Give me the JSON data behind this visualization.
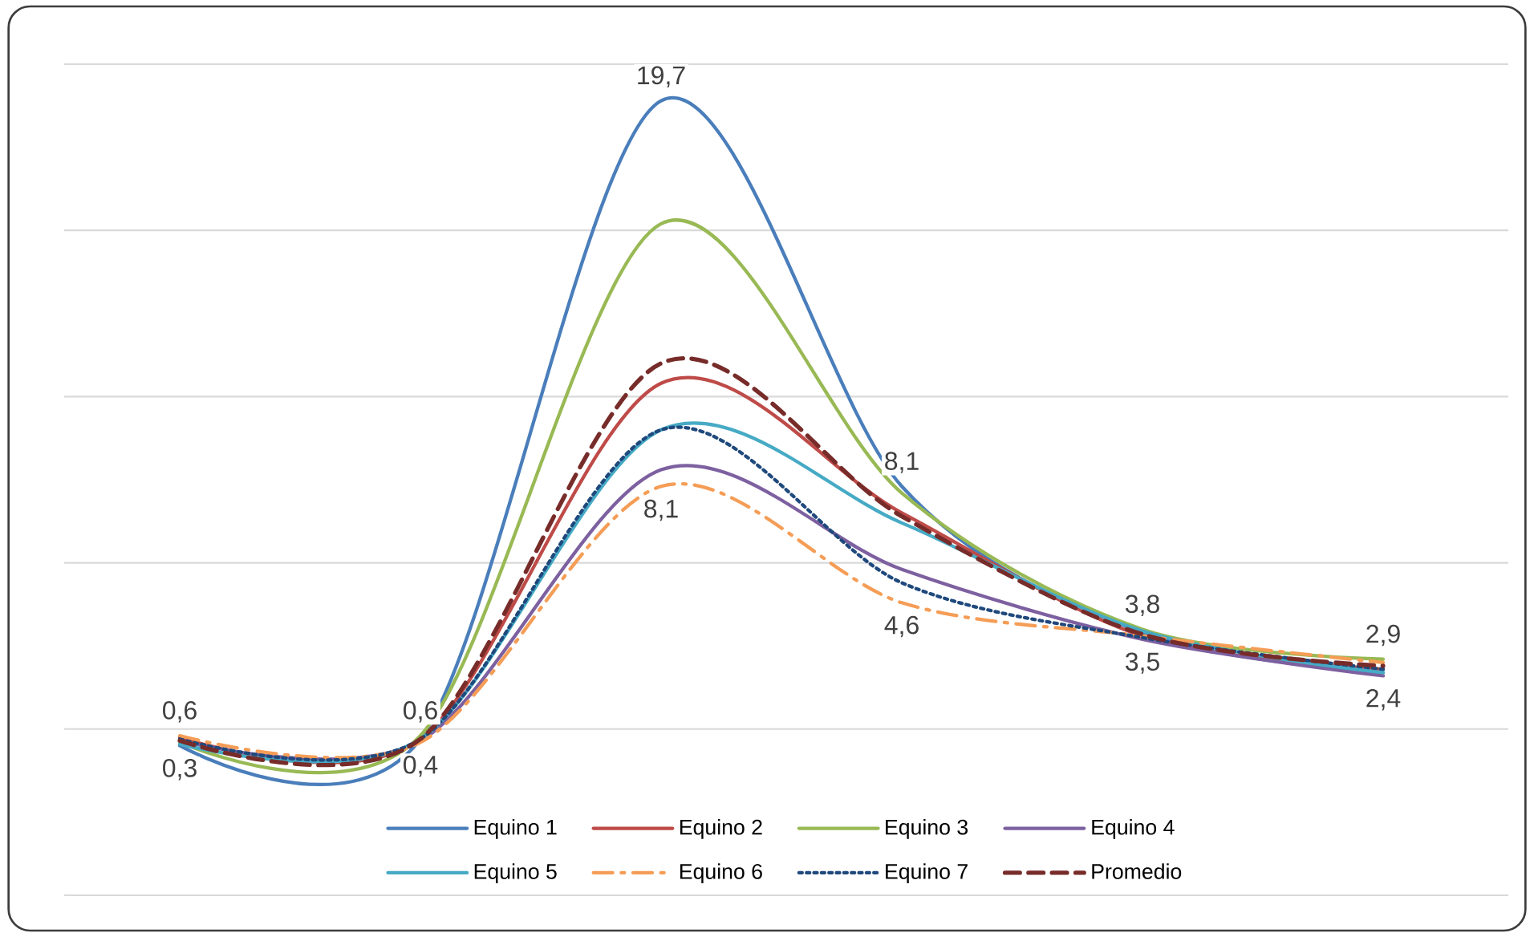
{
  "chart_data": {
    "type": "line",
    "categories": [
      null,
      null,
      null,
      null,
      null,
      null
    ],
    "series": [
      {
        "name": "Equino 1",
        "color": "#4a7ebb",
        "values": [
          0.3,
          0.5,
          19.7,
          8.1,
          3.7,
          2.5
        ],
        "value_labels": [
          "0,3",
          null,
          "19,7",
          "8,1",
          null,
          null
        ]
      },
      {
        "name": "Equino 2",
        "color": "#be4b48",
        "values": [
          0.55,
          0.5,
          11.2,
          7.3,
          3.6,
          2.6
        ]
      },
      {
        "name": "Equino 3",
        "color": "#98b954",
        "values": [
          0.4,
          0.6,
          16.0,
          7.9,
          3.8,
          2.9
        ],
        "value_labels": [
          null,
          "0,6",
          null,
          null,
          "3,8",
          "2,9"
        ]
      },
      {
        "name": "Equino 4",
        "color": "#7d60a0",
        "values": [
          0.45,
          0.45,
          8.6,
          5.6,
          3.5,
          2.4
        ],
        "value_labels": [
          null,
          null,
          null,
          null,
          "3,5",
          "2,4"
        ]
      },
      {
        "name": "Equino 5",
        "color": "#46aac5",
        "values": [
          0.35,
          0.5,
          9.8,
          7.0,
          3.75,
          2.5
        ]
      },
      {
        "name": "Equino 6",
        "color": "#f59d56",
        "values": [
          0.6,
          0.4,
          8.1,
          4.6,
          3.6,
          2.8
        ],
        "line_style": "dashdot",
        "value_labels": [
          "0,6",
          "0,4",
          "8,1",
          "4,6",
          null,
          null
        ]
      },
      {
        "name": "Equino 7",
        "color": "#1f497d",
        "values": [
          0.5,
          0.5,
          9.8,
          5.2,
          3.55,
          2.6
        ],
        "line_style": "dotted"
      },
      {
        "name": "Promedio",
        "color": "#772c2a",
        "values": [
          0.45,
          0.5,
          11.8,
          7.2,
          3.65,
          2.7
        ],
        "line_style": "dashed"
      }
    ],
    "ylim": [
      -4.2,
      20.8
    ],
    "yticks": [
      {
        "value": -4.2,
        "label": null
      },
      {
        "value": 0.8,
        "label": null
      },
      {
        "value": 5.8,
        "label": null
      },
      {
        "value": 10.8,
        "label": null
      },
      {
        "value": 15.8,
        "label": null
      },
      {
        "value": 20.8,
        "label": null
      }
    ],
    "grid": "y",
    "legend": "bottom",
    "tick_labels": false
  }
}
